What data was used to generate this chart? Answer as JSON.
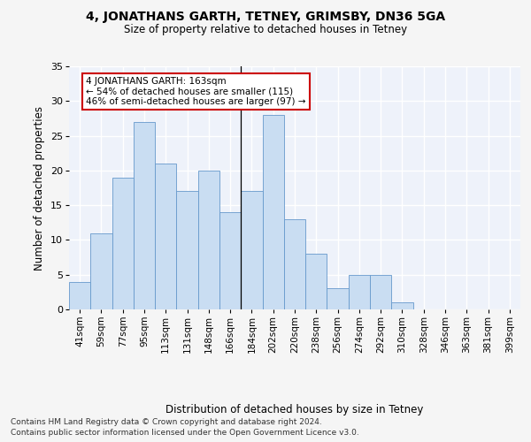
{
  "title1": "4, JONATHANS GARTH, TETNEY, GRIMSBY, DN36 5GA",
  "title2": "Size of property relative to detached houses in Tetney",
  "xlabel": "Distribution of detached houses by size in Tetney",
  "ylabel": "Number of detached properties",
  "categories": [
    "41sqm",
    "59sqm",
    "77sqm",
    "95sqm",
    "113sqm",
    "131sqm",
    "148sqm",
    "166sqm",
    "184sqm",
    "202sqm",
    "220sqm",
    "238sqm",
    "256sqm",
    "274sqm",
    "292sqm",
    "310sqm",
    "328sqm",
    "346sqm",
    "363sqm",
    "381sqm",
    "399sqm"
  ],
  "values": [
    4,
    11,
    19,
    27,
    21,
    17,
    20,
    14,
    17,
    28,
    13,
    8,
    3,
    5,
    5,
    1,
    0,
    0,
    0,
    0,
    0
  ],
  "bar_color": "#c9ddf2",
  "bar_edge_color": "#6699cc",
  "vline_index": 7.5,
  "annotation_text": "4 JONATHANS GARTH: 163sqm\n← 54% of detached houses are smaller (115)\n46% of semi-detached houses are larger (97) →",
  "annotation_box_color": "#ffffff",
  "annotation_box_edge": "#cc0000",
  "ylim": [
    0,
    35
  ],
  "yticks": [
    0,
    5,
    10,
    15,
    20,
    25,
    30,
    35
  ],
  "footnote1": "Contains HM Land Registry data © Crown copyright and database right 2024.",
  "footnote2": "Contains public sector information licensed under the Open Government Licence v3.0.",
  "bg_color": "#eef2fa",
  "grid_color": "#ffffff",
  "fig_bg": "#f5f5f5"
}
